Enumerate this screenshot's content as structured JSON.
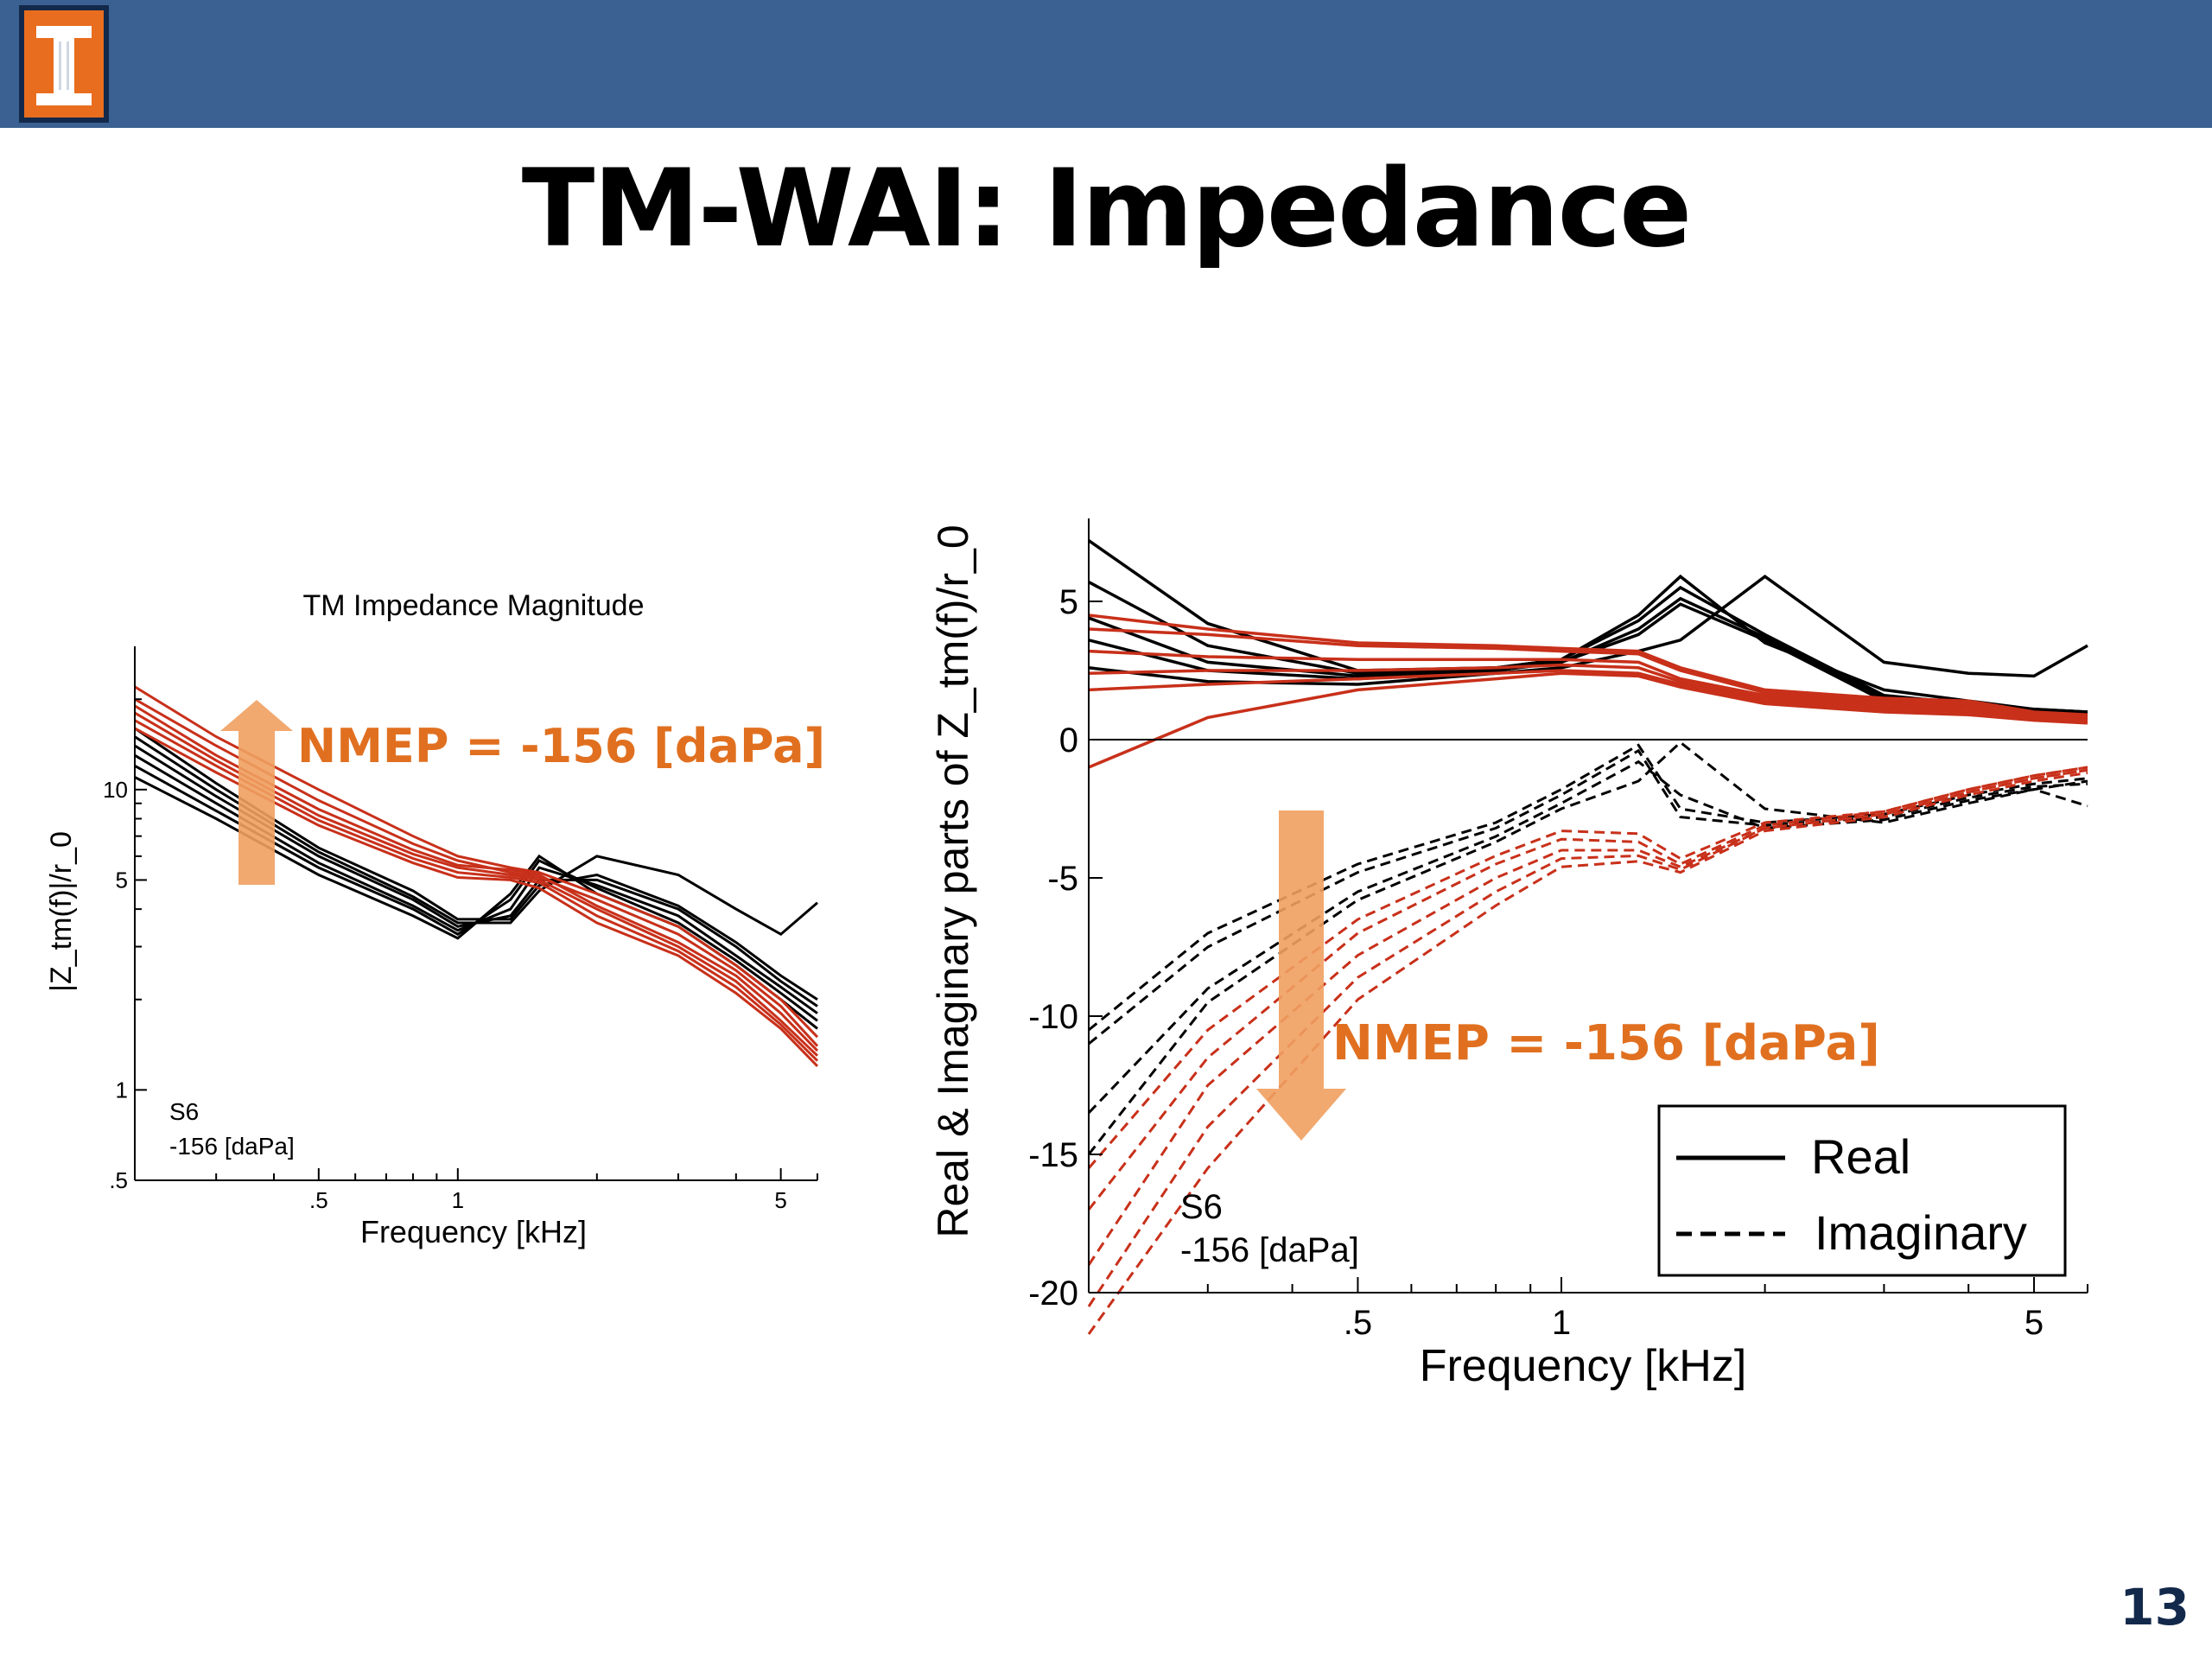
{
  "slide": {
    "title": "TM-WAI: Impedance",
    "page_number": "13",
    "logo": "university-i-logo",
    "colors": {
      "header_bar": "#3a6191",
      "logo_orange": "#e96d1f",
      "logo_navy": "#13294b",
      "annotation_orange": "#e07020",
      "arrow_orange": "#f0a060",
      "red_series": "#c8301a",
      "black_series": "#000000"
    }
  },
  "chart_data": [
    {
      "type": "line",
      "title": "TM Impedance Magnitude",
      "xlabel": "Frequency [kHz]",
      "ylabel": "|Z_tm(f)|/r_0",
      "xscale": "log",
      "yscale": "log",
      "xlim": [
        0.2,
        6
      ],
      "ylim": [
        0.5,
        30
      ],
      "x_ticks": [
        0.5,
        1,
        5
      ],
      "x_tick_labels": [
        ".5",
        "1",
        "5"
      ],
      "y_ticks": [
        0.5,
        1,
        5,
        10
      ],
      "y_tick_labels": [
        ".5",
        "1",
        "5",
        "10"
      ],
      "annotations": [
        "NMEP = -156 [daPa]",
        "S6",
        "-156 [daPa]"
      ],
      "arrow": "up",
      "x": [
        0.2,
        0.3,
        0.5,
        0.8,
        1.0,
        1.3,
        1.5,
        2.0,
        3.0,
        4.0,
        5.0,
        6.0
      ],
      "series": [
        {
          "color": "black",
          "values": [
            11.0,
            8.0,
            5.2,
            3.8,
            3.2,
            4.5,
            6.0,
            4.5,
            3.5,
            2.6,
            2.0,
            1.6
          ]
        },
        {
          "color": "black",
          "values": [
            12.0,
            8.5,
            5.5,
            4.0,
            3.3,
            4.3,
            5.8,
            4.7,
            3.6,
            2.7,
            2.1,
            1.7
          ]
        },
        {
          "color": "black",
          "values": [
            13.0,
            9.0,
            5.7,
            4.1,
            3.4,
            4.0,
            5.5,
            4.8,
            3.8,
            2.8,
            2.2,
            1.8
          ]
        },
        {
          "color": "black",
          "values": [
            14.0,
            9.5,
            6.0,
            4.3,
            3.5,
            3.8,
            5.0,
            5.0,
            4.0,
            3.0,
            2.3,
            1.9
          ]
        },
        {
          "color": "black",
          "values": [
            15.0,
            10.0,
            6.2,
            4.4,
            3.6,
            3.6,
            4.6,
            6.0,
            5.2,
            4.0,
            3.3,
            4.2
          ]
        },
        {
          "color": "black",
          "values": [
            16.0,
            10.5,
            6.4,
            4.6,
            3.7,
            3.7,
            4.8,
            5.2,
            4.1,
            3.1,
            2.4,
            2.0
          ]
        },
        {
          "color": "red",
          "values": [
            22.0,
            15.0,
            10.0,
            7.0,
            6.0,
            5.5,
            5.3,
            4.5,
            3.5,
            2.6,
            2.0,
            1.5
          ]
        },
        {
          "color": "red",
          "values": [
            20.0,
            14.0,
            9.2,
            6.6,
            5.8,
            5.3,
            5.1,
            4.3,
            3.3,
            2.5,
            1.9,
            1.4
          ]
        },
        {
          "color": "red",
          "values": [
            19.0,
            13.0,
            8.6,
            6.3,
            5.6,
            5.4,
            5.2,
            4.1,
            3.1,
            2.4,
            1.8,
            1.35
          ]
        },
        {
          "color": "red",
          "values": [
            18.0,
            12.5,
            8.2,
            6.1,
            5.5,
            5.2,
            5.0,
            4.0,
            3.0,
            2.3,
            1.7,
            1.3
          ]
        },
        {
          "color": "red",
          "values": [
            17.0,
            12.0,
            7.9,
            5.9,
            5.3,
            5.1,
            4.9,
            3.8,
            2.9,
            2.2,
            1.65,
            1.25
          ]
        },
        {
          "color": "red",
          "values": [
            16.0,
            11.4,
            7.6,
            5.7,
            5.1,
            5.0,
            4.7,
            3.6,
            2.8,
            2.1,
            1.6,
            1.2
          ]
        }
      ]
    },
    {
      "type": "line",
      "xlabel": "Frequency [kHz]",
      "ylabel": "Real & Imaginary parts of Z_tm(f)/r_0",
      "xscale": "log",
      "xlim": [
        0.2,
        6
      ],
      "ylim": [
        -20,
        8
      ],
      "x_ticks": [
        0.5,
        1,
        5
      ],
      "x_tick_labels": [
        ".5",
        "1",
        "5"
      ],
      "y_ticks": [
        5,
        0,
        -5,
        -10,
        -15,
        -20
      ],
      "y_tick_labels": [
        "5",
        "0",
        "-5",
        "-10",
        "-15",
        "-20"
      ],
      "legend": {
        "position": "bottom-right",
        "entries": [
          {
            "label": "Real",
            "style": "solid"
          },
          {
            "label": "Imaginary",
            "style": "dashed"
          }
        ]
      },
      "annotations": [
        "NMEP = -156 [daPa]",
        "S6",
        "-156 [daPa]"
      ],
      "arrow": "down",
      "x": [
        0.2,
        0.3,
        0.5,
        0.8,
        1.0,
        1.3,
        1.5,
        2.0,
        3.0,
        4.0,
        5.0,
        6.0
      ],
      "series": [
        {
          "color": "black",
          "style": "solid",
          "values": [
            7.2,
            4.2,
            2.5,
            2.6,
            2.9,
            4.5,
            5.9,
            3.5,
            1.8,
            1.4,
            1.1,
            1.0
          ]
        },
        {
          "color": "black",
          "style": "solid",
          "values": [
            5.7,
            3.4,
            2.4,
            2.6,
            2.9,
            4.3,
            5.5,
            3.8,
            1.6,
            1.3,
            1.1,
            1.0
          ]
        },
        {
          "color": "black",
          "style": "solid",
          "values": [
            4.4,
            2.8,
            2.3,
            2.5,
            2.8,
            4.0,
            5.1,
            3.7,
            1.5,
            1.2,
            1.0,
            0.9
          ]
        },
        {
          "color": "black",
          "style": "solid",
          "values": [
            3.6,
            2.5,
            2.2,
            2.5,
            2.8,
            3.8,
            4.9,
            3.6,
            1.4,
            1.2,
            1.0,
            0.9
          ]
        },
        {
          "color": "black",
          "style": "solid",
          "values": [
            2.6,
            2.1,
            2.0,
            2.4,
            2.6,
            3.2,
            3.6,
            5.9,
            2.8,
            2.4,
            2.3,
            3.4
          ]
        },
        {
          "color": "red",
          "style": "solid",
          "values": [
            4.5,
            4.0,
            3.5,
            3.4,
            3.3,
            3.2,
            2.6,
            1.8,
            1.5,
            1.4,
            1.0,
            0.9
          ]
        },
        {
          "color": "red",
          "style": "solid",
          "values": [
            4.0,
            3.8,
            3.4,
            3.3,
            3.2,
            3.1,
            2.5,
            1.7,
            1.4,
            1.3,
            0.9,
            0.8
          ]
        },
        {
          "color": "red",
          "style": "solid",
          "values": [
            3.2,
            3.0,
            2.9,
            2.9,
            2.9,
            2.8,
            2.2,
            1.6,
            1.3,
            1.2,
            0.9,
            0.8
          ]
        },
        {
          "color": "red",
          "style": "solid",
          "values": [
            2.4,
            2.5,
            2.5,
            2.6,
            2.7,
            2.6,
            2.1,
            1.5,
            1.2,
            1.1,
            0.8,
            0.7
          ]
        },
        {
          "color": "red",
          "style": "solid",
          "values": [
            1.8,
            2.0,
            2.2,
            2.4,
            2.5,
            2.4,
            2.0,
            1.4,
            1.1,
            1.0,
            0.8,
            0.7
          ]
        },
        {
          "color": "red",
          "style": "solid",
          "values": [
            -1.0,
            0.8,
            1.8,
            2.2,
            2.4,
            2.3,
            1.9,
            1.3,
            1.0,
            0.9,
            0.7,
            0.6
          ]
        },
        {
          "color": "black",
          "style": "dashed",
          "values": [
            -10.5,
            -7.0,
            -4.5,
            -3.0,
            -1.8,
            -0.2,
            -2.5,
            -3.0,
            -2.7,
            -2.0,
            -1.6,
            -1.4
          ]
        },
        {
          "color": "black",
          "style": "dashed",
          "values": [
            -11.0,
            -7.5,
            -4.8,
            -3.2,
            -2.0,
            -0.4,
            -2.8,
            -3.1,
            -2.8,
            -2.1,
            -1.7,
            -1.6
          ]
        },
        {
          "color": "black",
          "style": "dashed",
          "values": [
            -13.5,
            -9.0,
            -5.5,
            -3.5,
            -2.3,
            -0.8,
            -2.0,
            -3.2,
            -2.9,
            -2.2,
            -1.8,
            -2.4
          ]
        },
        {
          "color": "black",
          "style": "dashed",
          "values": [
            -15.0,
            -9.5,
            -5.8,
            -3.7,
            -2.5,
            -1.5,
            -0.1,
            -2.5,
            -3.0,
            -2.3,
            -1.8,
            -1.5
          ]
        },
        {
          "color": "red",
          "style": "dashed",
          "values": [
            -15.5,
            -10.5,
            -6.5,
            -4.2,
            -3.3,
            -3.4,
            -4.3,
            -3.0,
            -2.6,
            -1.8,
            -1.3,
            -1.0
          ]
        },
        {
          "color": "red",
          "style": "dashed",
          "values": [
            -17.0,
            -11.5,
            -7.0,
            -4.5,
            -3.6,
            -3.7,
            -4.5,
            -3.1,
            -2.6,
            -1.8,
            -1.3,
            -1.0
          ]
        },
        {
          "color": "red",
          "style": "dashed",
          "values": [
            -19.0,
            -12.5,
            -7.8,
            -5.0,
            -4.0,
            -4.0,
            -4.6,
            -3.2,
            -2.7,
            -1.9,
            -1.4,
            -1.1
          ]
        },
        {
          "color": "red",
          "style": "dashed",
          "values": [
            -20.5,
            -14.0,
            -8.6,
            -5.5,
            -4.3,
            -4.2,
            -4.7,
            -3.2,
            -2.7,
            -1.9,
            -1.4,
            -1.1
          ]
        },
        {
          "color": "red",
          "style": "dashed",
          "values": [
            -22.0,
            -15.5,
            -9.4,
            -6.0,
            -4.6,
            -4.4,
            -4.8,
            -3.3,
            -2.8,
            -2.0,
            -1.5,
            -1.2
          ]
        }
      ]
    }
  ]
}
